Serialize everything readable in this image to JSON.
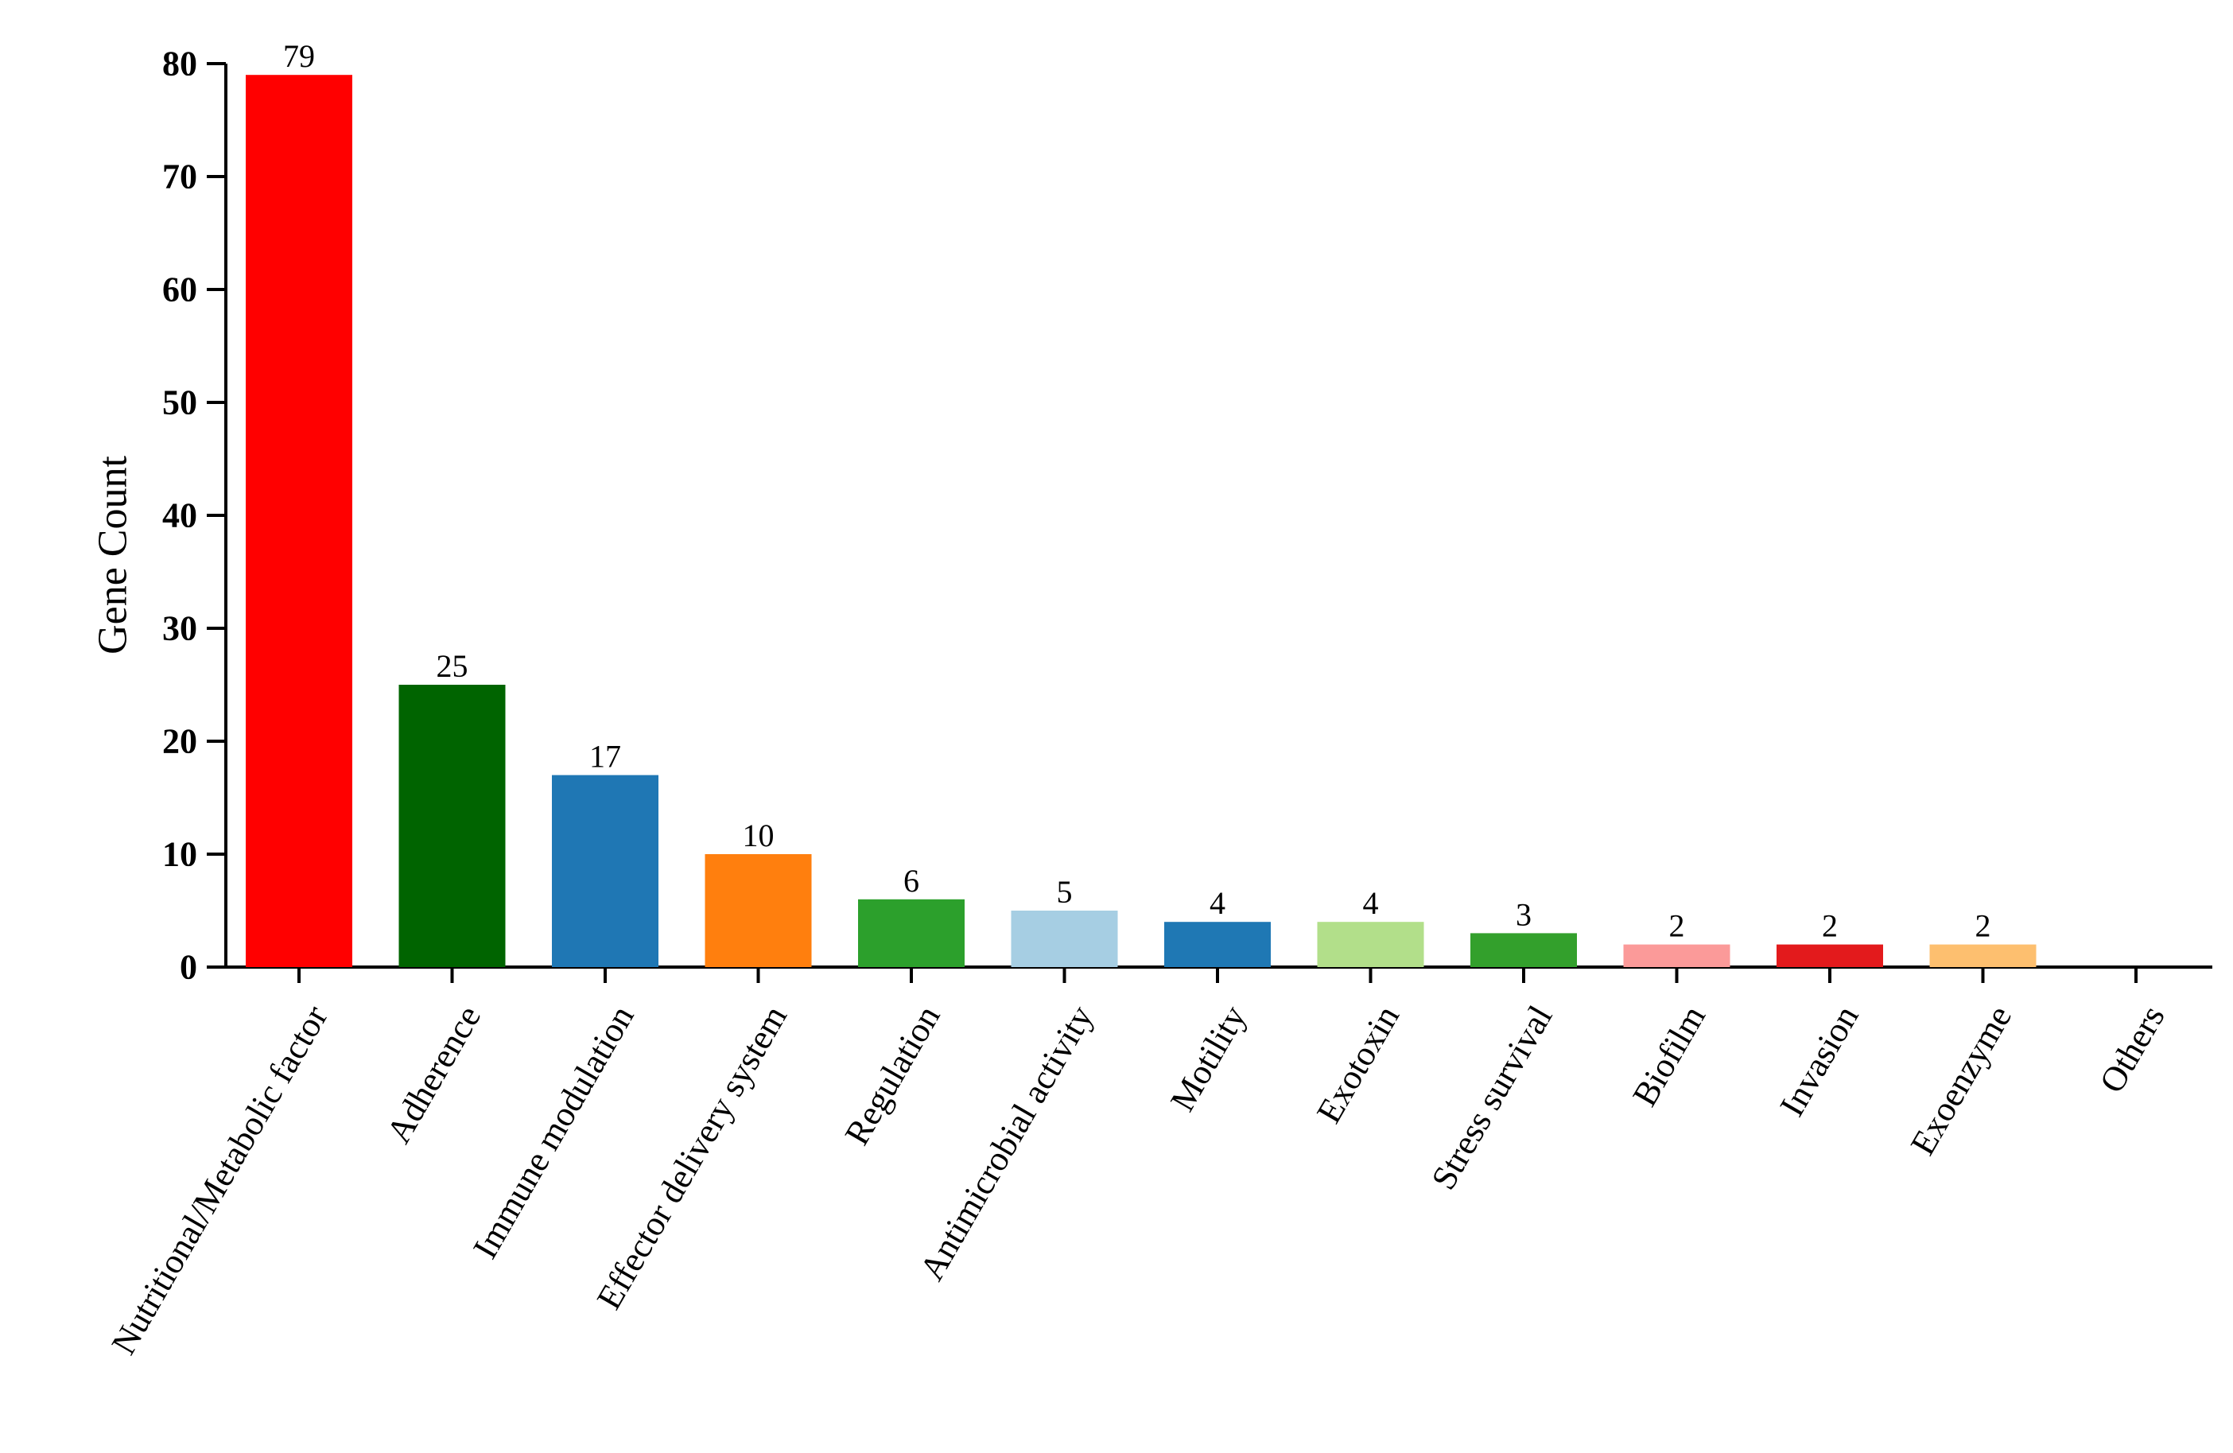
{
  "chart_data": {
    "type": "bar",
    "title": "",
    "xlabel": "",
    "ylabel": "Gene Count",
    "ylim": [
      0,
      80
    ],
    "yticks": [
      0,
      10,
      20,
      30,
      40,
      50,
      60,
      70,
      80
    ],
    "grid": false,
    "legend": "none",
    "categories": [
      "Nutritional/Metabolic factor",
      "Adherence",
      "Immune modulation",
      "Effector delivery system",
      "Regulation",
      "Antimicrobial activity",
      "Motility",
      "Exotoxin",
      "Stress survival",
      "Biofilm",
      "Invasion",
      "Exoenzyme",
      "Others"
    ],
    "values": [
      79,
      25,
      17,
      10,
      6,
      5,
      4,
      4,
      3,
      2,
      2,
      2,
      0
    ],
    "data_labels": [
      "79",
      "25",
      "17",
      "10",
      "6",
      "5",
      "4",
      "4",
      "3",
      "2",
      "2",
      "2",
      ""
    ],
    "colors": [
      "#ff0000",
      "#006400",
      "#1f77b4",
      "#ff7f0e",
      "#2ca02c",
      "#a6cee3",
      "#1f78b4",
      "#b2df8a",
      "#33a02c",
      "#fb9a99",
      "#e31a1c",
      "#fdbf6f",
      "#cab2d6"
    ]
  }
}
